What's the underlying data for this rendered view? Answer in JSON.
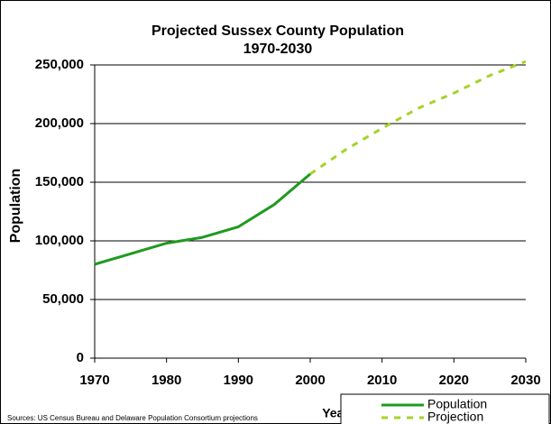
{
  "chart_data": {
    "type": "line",
    "title": "Projected Sussex County Population",
    "subtitle": "1970-2030",
    "x_label": "Year",
    "y_label": "Population",
    "source": "Sources: US Census Bureau and Delaware Population Consortium projections",
    "x": [
      1970,
      1975,
      1980,
      1985,
      1990,
      1995,
      2000,
      2005,
      2010,
      2015,
      2020,
      2025,
      2030
    ],
    "series": [
      {
        "name": "Population",
        "color": "#1f9a1f",
        "dashed": false,
        "values": [
          80000,
          89000,
          98000,
          103000,
          112000,
          131000,
          157000,
          null,
          null,
          null,
          null,
          null,
          null
        ]
      },
      {
        "name": "Projection",
        "color": "#a6d22a",
        "dashed": true,
        "values": [
          null,
          null,
          null,
          null,
          null,
          null,
          157000,
          178000,
          196000,
          213000,
          226000,
          241000,
          253000
        ]
      }
    ],
    "xlim": [
      1970,
      2030
    ],
    "xticks": [
      1970,
      1980,
      1990,
      2000,
      2010,
      2020,
      2030
    ],
    "ylim": [
      0,
      250000
    ],
    "yticks": [
      0,
      {
        "value": 50000,
        "label": "50,000"
      },
      {
        "value": 100000,
        "label": "100,000"
      },
      {
        "value": 150000,
        "label": "150,000"
      },
      {
        "value": 200000,
        "label": "200,000"
      },
      {
        "value": 250000,
        "label": "250,000"
      }
    ],
    "grid": true,
    "legend": "bottom-right"
  }
}
